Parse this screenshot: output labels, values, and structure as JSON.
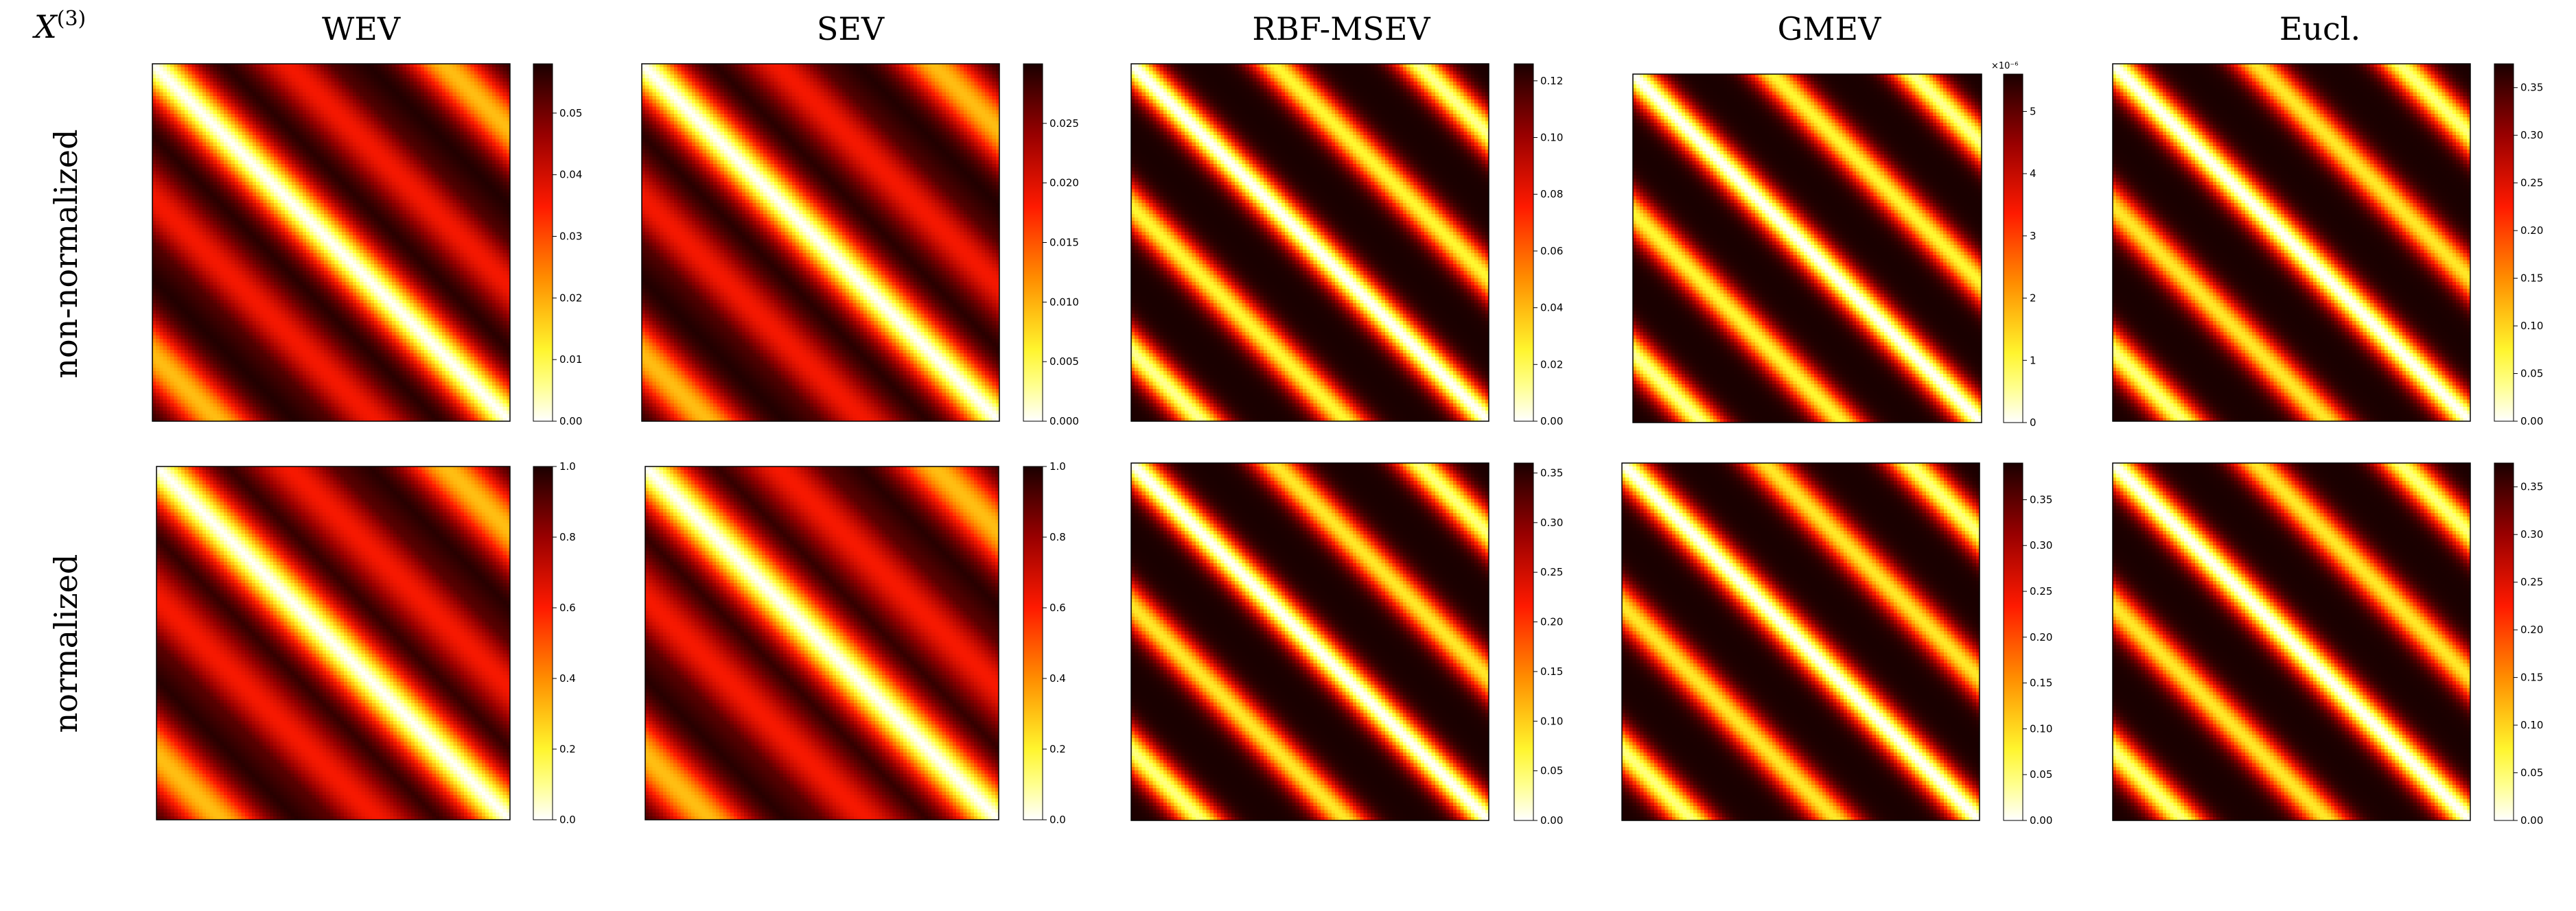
{
  "figure": {
    "label_base": "X",
    "label_sup": "(3)",
    "columns": [
      "WEV",
      "SEV",
      "RBF-MSEV",
      "GMEV",
      "Eucl."
    ],
    "rows": [
      "non-normalized",
      "normalized"
    ]
  },
  "colors": {
    "colormap": "hot_r",
    "stops": [
      "#ffffff",
      "#ffff33",
      "#ff9900",
      "#ff1a00",
      "#990000",
      "#1a0000"
    ]
  },
  "chart_data": [
    {
      "type": "heatmap",
      "title": "WEV",
      "row": "non-normalized",
      "pattern": {
        "period": 40,
        "width": 11,
        "contrast": 1.0
      },
      "colorbar": {
        "range": [
          0,
          0.058
        ],
        "ticks": [
          0,
          0.01,
          0.02,
          0.03,
          0.04,
          0.05
        ],
        "tick_labels": [
          "0.00",
          "0.01",
          "0.02",
          "0.03",
          "0.04",
          "0.05"
        ],
        "exponent_label": ""
      }
    },
    {
      "type": "heatmap",
      "title": "SEV",
      "row": "non-normalized",
      "pattern": {
        "period": 40,
        "width": 11,
        "contrast": 1.0
      },
      "colorbar": {
        "range": [
          0,
          0.03
        ],
        "ticks": [
          0,
          0.005,
          0.01,
          0.015,
          0.02,
          0.025
        ],
        "tick_labels": [
          "0.000",
          "0.005",
          "0.010",
          "0.015",
          "0.020",
          "0.025"
        ],
        "exponent_label": ""
      }
    },
    {
      "type": "heatmap",
      "title": "RBF-MSEV",
      "row": "non-normalized",
      "pattern": {
        "period": 40,
        "width": 7,
        "contrast": 0.3
      },
      "colorbar": {
        "range": [
          0,
          0.126
        ],
        "ticks": [
          0,
          0.02,
          0.04,
          0.06,
          0.08,
          0.1,
          0.12
        ],
        "tick_labels": [
          "0.00",
          "0.02",
          "0.04",
          "0.06",
          "0.08",
          "0.10",
          "0.12"
        ],
        "exponent_label": ""
      }
    },
    {
      "type": "heatmap",
      "title": "GMEV",
      "row": "non-normalized",
      "pattern": {
        "period": 40,
        "width": 7,
        "contrast": 0.3
      },
      "colorbar": {
        "range": [
          0,
          5.6
        ],
        "ticks": [
          0,
          1,
          2,
          3,
          4,
          5
        ],
        "tick_labels": [
          "0",
          "1",
          "2",
          "3",
          "4",
          "5"
        ],
        "exponent_label": "×10⁻⁶"
      }
    },
    {
      "type": "heatmap",
      "title": "Eucl.",
      "row": "non-normalized",
      "pattern": {
        "period": 40,
        "width": 7,
        "contrast": 0.35
      },
      "colorbar": {
        "range": [
          0,
          0.375
        ],
        "ticks": [
          0,
          0.05,
          0.1,
          0.15,
          0.2,
          0.25,
          0.3,
          0.35
        ],
        "tick_labels": [
          "0.00",
          "0.05",
          "0.10",
          "0.15",
          "0.20",
          "0.25",
          "0.30",
          "0.35"
        ],
        "exponent_label": ""
      }
    },
    {
      "type": "heatmap",
      "title": "WEV",
      "row": "normalized",
      "pattern": {
        "period": 40,
        "width": 12,
        "contrast": 1.0
      },
      "colorbar": {
        "range": [
          0,
          1.0
        ],
        "ticks": [
          0,
          0.2,
          0.4,
          0.6,
          0.8,
          1.0
        ],
        "tick_labels": [
          "0.0",
          "0.2",
          "0.4",
          "0.6",
          "0.8",
          "1.0"
        ],
        "exponent_label": ""
      }
    },
    {
      "type": "heatmap",
      "title": "SEV",
      "row": "normalized",
      "pattern": {
        "period": 40,
        "width": 12,
        "contrast": 1.0
      },
      "colorbar": {
        "range": [
          0,
          1.0
        ],
        "ticks": [
          0,
          0.2,
          0.4,
          0.6,
          0.8,
          1.0
        ],
        "tick_labels": [
          "0.0",
          "0.2",
          "0.4",
          "0.6",
          "0.8",
          "1.0"
        ],
        "exponent_label": ""
      }
    },
    {
      "type": "heatmap",
      "title": "RBF-MSEV",
      "row": "normalized",
      "pattern": {
        "period": 40,
        "width": 7,
        "contrast": 0.35
      },
      "colorbar": {
        "range": [
          0,
          0.36
        ],
        "ticks": [
          0,
          0.05,
          0.1,
          0.15,
          0.2,
          0.25,
          0.3,
          0.35
        ],
        "tick_labels": [
          "0.00",
          "0.05",
          "0.10",
          "0.15",
          "0.20",
          "0.25",
          "0.30",
          "0.35"
        ],
        "exponent_label": ""
      }
    },
    {
      "type": "heatmap",
      "title": "GMEV",
      "row": "normalized",
      "pattern": {
        "period": 40,
        "width": 7,
        "contrast": 0.35
      },
      "colorbar": {
        "range": [
          0,
          0.39
        ],
        "ticks": [
          0,
          0.05,
          0.1,
          0.15,
          0.2,
          0.25,
          0.3,
          0.35
        ],
        "tick_labels": [
          "0.00",
          "0.05",
          "0.10",
          "0.15",
          "0.20",
          "0.25",
          "0.30",
          "0.35"
        ],
        "exponent_label": ""
      }
    },
    {
      "type": "heatmap",
      "title": "Eucl.",
      "row": "normalized",
      "pattern": {
        "period": 40,
        "width": 7,
        "contrast": 0.35
      },
      "colorbar": {
        "range": [
          0,
          0.375
        ],
        "ticks": [
          0,
          0.05,
          0.1,
          0.15,
          0.2,
          0.25,
          0.3,
          0.35
        ],
        "tick_labels": [
          "0.00",
          "0.05",
          "0.10",
          "0.15",
          "0.20",
          "0.25",
          "0.30",
          "0.35"
        ],
        "exponent_label": ""
      }
    }
  ]
}
